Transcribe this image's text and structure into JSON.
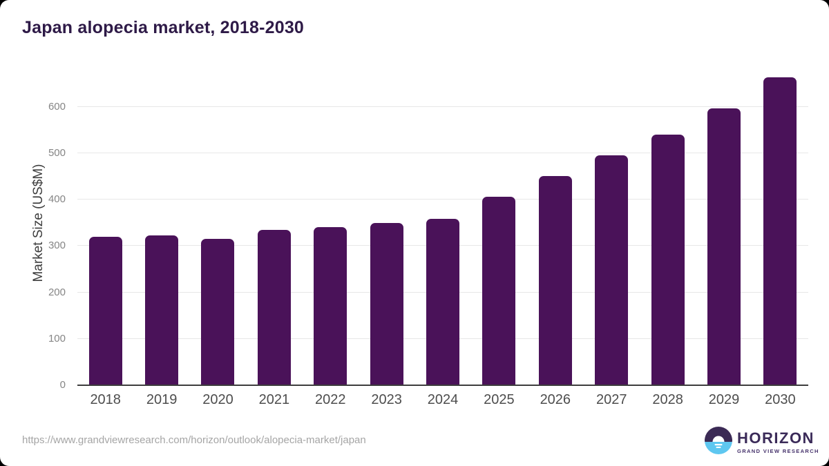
{
  "page": {
    "title": "Japan alopecia market, 2018-2030",
    "source_url": "https://www.grandviewresearch.com/horizon/outlook/alopecia-market/japan"
  },
  "logo": {
    "name": "HORIZON",
    "subtitle": "GRAND VIEW RESEARCH",
    "icon": "horizon-sun-over-water-icon",
    "icon_top_color": "#3b2a55",
    "icon_bottom_color": "#5ec7f0"
  },
  "chart_data": {
    "type": "bar",
    "title": "Japan alopecia market, 2018-2030",
    "categories": [
      "2018",
      "2019",
      "2020",
      "2021",
      "2022",
      "2023",
      "2024",
      "2025",
      "2026",
      "2027",
      "2028",
      "2029",
      "2030"
    ],
    "values": [
      319,
      322,
      316,
      334,
      341,
      350,
      359,
      406,
      450,
      495,
      540,
      596,
      663
    ],
    "xlabel": "",
    "ylabel": "Market Size (US$M)",
    "yticks": [
      0,
      100,
      200,
      300,
      400,
      500,
      600
    ],
    "ylim": [
      0,
      687
    ],
    "grid": "horizontal",
    "legend_position": "none",
    "bar_color": "#4a1259",
    "gridline_color": "#e7e7e7",
    "axis_line_color": "#3d3d3d",
    "title_color": "#2e1a47"
  }
}
